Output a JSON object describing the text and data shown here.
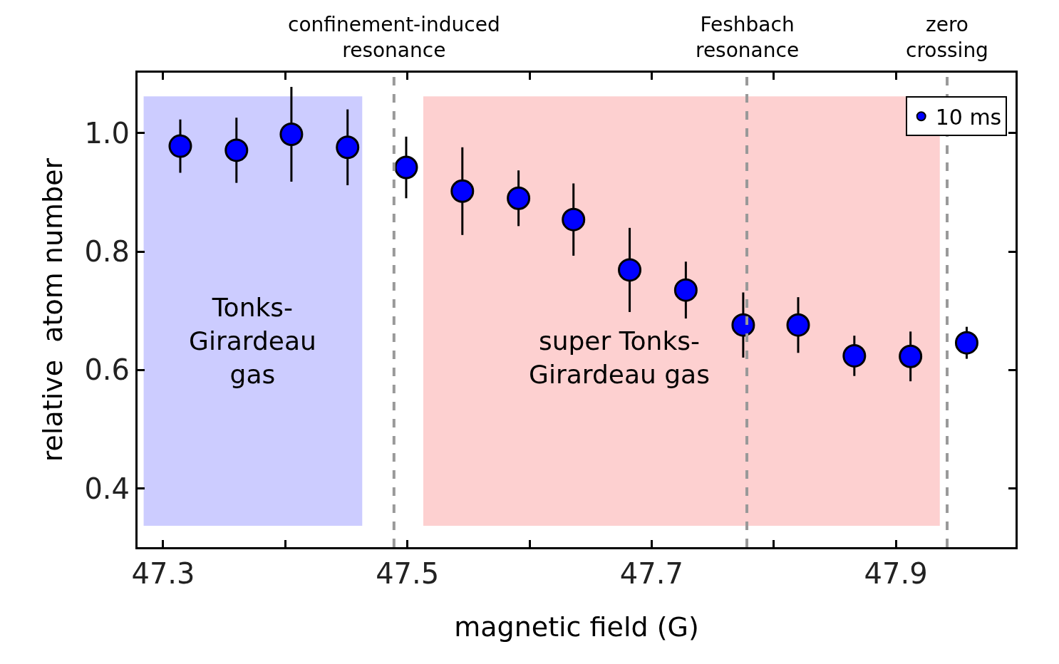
{
  "chart_data": {
    "type": "scatter",
    "xlabel": "magnetic field (G)",
    "ylabel": "relative  atom number",
    "x": [
      47.314,
      47.36,
      47.405,
      47.451,
      47.499,
      47.545,
      47.591,
      47.636,
      47.682,
      47.728,
      47.775,
      47.82,
      47.866,
      47.912,
      47.958
    ],
    "series": [
      {
        "name": "10 ms",
        "color": "#0000ff",
        "values": [
          0.978,
          0.971,
          0.998,
          0.976,
          0.942,
          0.902,
          0.89,
          0.854,
          0.769,
          0.735,
          0.676,
          0.676,
          0.624,
          0.623,
          0.646
        ],
        "errors": [
          0.045,
          0.055,
          0.08,
          0.064,
          0.052,
          0.074,
          0.047,
          0.061,
          0.071,
          0.048,
          0.055,
          0.047,
          0.034,
          0.042,
          0.027
        ]
      }
    ],
    "xlim": [
      47.279,
      47.998
    ],
    "xticks": [
      47.3,
      {
        "value": 47.4,
        "label": null
      },
      47.5,
      {
        "value": 47.6,
        "label": null
      },
      47.7,
      {
        "value": 47.8,
        "label": null
      },
      47.9
    ],
    "ylim": [
      0.301,
      1.102
    ],
    "yticks": [
      {
        "value": 0.4,
        "label": "0.4"
      },
      {
        "value": 0.6,
        "label": "0.6"
      },
      {
        "value": 0.8,
        "label": "0.8"
      },
      {
        "value": 1.0,
        "label": "1.0"
      }
    ],
    "ref_lines": [
      {
        "axis": "x",
        "value": 47.489,
        "label": "confinement-induced\nresonance",
        "color": "#999999",
        "line_style": "dashed"
      },
      {
        "axis": "x",
        "value": 47.778,
        "label": "Feshbach\nresonance",
        "color": "#999999",
        "line_style": "dashed"
      },
      {
        "axis": "x",
        "value": 47.942,
        "label": "zero\ncrossing",
        "color": "#999999",
        "line_style": "dashed"
      }
    ],
    "bands": [
      {
        "axis": "x",
        "from": 47.284,
        "to": 47.463,
        "label": "Tonks-\nGirardeau\ngas",
        "color": "#ccccff"
      },
      {
        "axis": "x",
        "from": 47.513,
        "to": 47.936,
        "label": "super Tonks-\nGirardeau gas",
        "color": "#fdd0d0"
      }
    ],
    "marker": "circle",
    "legend": "top right",
    "grid": false
  }
}
